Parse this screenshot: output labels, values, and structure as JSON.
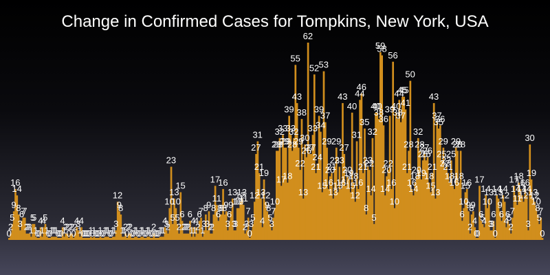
{
  "chart_data": {
    "type": "bar",
    "title": "Change in Confirmed Cases for Tompkins, New York, USA",
    "xlabel": "",
    "ylabel": "",
    "grid": false,
    "legend": "none",
    "bar_color": "#d18e1d",
    "label_color": "#ffffff",
    "ylim": [
      -4,
      62
    ],
    "values": [
      0,
      2,
      5,
      9,
      16,
      14,
      8,
      3,
      6,
      7,
      7,
      2,
      2,
      2,
      1,
      5,
      5,
      1,
      0,
      0,
      4,
      1,
      4,
      5,
      1,
      0,
      0,
      1,
      1,
      1,
      1,
      0,
      0,
      0,
      4,
      1,
      2,
      2,
      0,
      2,
      2,
      0,
      2,
      4,
      3,
      1,
      4,
      0,
      0,
      0,
      0,
      0,
      1,
      0,
      1,
      0,
      0,
      0,
      1,
      0,
      0,
      1,
      1,
      1,
      0,
      0,
      1,
      1,
      3,
      12,
      9,
      8,
      1,
      1,
      2,
      0,
      2,
      2,
      0,
      0,
      1,
      1,
      0,
      0,
      1,
      1,
      0,
      0,
      1,
      1,
      0,
      0,
      2,
      0,
      0,
      0,
      1,
      1,
      1,
      4,
      3,
      2,
      10,
      23,
      5,
      13,
      10,
      5,
      2,
      15,
      6,
      2,
      2,
      2,
      2,
      6,
      1,
      4,
      1,
      4,
      2,
      6,
      7,
      1,
      3,
      8,
      3,
      9,
      2,
      2,
      8,
      17,
      11,
      6,
      8,
      8,
      16,
      8,
      9,
      3,
      6,
      9,
      13,
      3,
      3,
      10,
      10,
      12,
      13,
      11,
      2,
      3,
      7,
      0,
      3,
      5,
      12,
      27,
      31,
      21,
      13,
      4,
      19,
      12,
      9,
      8,
      5,
      3,
      7,
      10,
      28,
      28,
      32,
      17,
      33,
      29,
      29,
      18,
      39,
      33,
      28,
      32,
      55,
      43,
      29,
      22,
      38,
      13,
      30,
      26,
      62,
      27,
      27,
      33,
      52,
      21,
      24,
      39,
      34,
      15,
      53,
      37,
      29,
      16,
      20,
      21,
      13,
      23,
      29,
      15,
      23,
      16,
      43,
      27,
      17,
      20,
      19,
      15,
      40,
      18,
      12,
      31,
      16,
      44,
      46,
      21,
      35,
      8,
      23,
      22,
      14,
      32,
      5,
      40,
      40,
      38,
      59,
      58,
      36,
      14,
      20,
      22,
      39,
      16,
      56,
      10,
      40,
      38,
      44,
      37,
      45,
      45,
      41,
      21,
      28,
      50,
      16,
      14,
      18,
      20,
      32,
      28,
      19,
      25,
      27,
      25,
      26,
      18,
      15,
      21,
      43,
      13,
      37,
      35,
      36,
      25,
      29,
      22,
      23,
      21,
      18,
      25,
      17,
      16,
      29,
      28,
      18,
      28,
      6,
      10,
      15,
      16,
      9,
      2,
      8,
      9,
      4,
      0,
      0,
      17,
      6,
      5,
      4,
      14,
      10,
      13,
      3,
      3,
      6,
      0,
      14,
      13,
      9,
      6,
      14,
      12,
      4,
      6,
      5,
      2,
      7,
      17,
      14,
      11,
      18,
      16,
      14,
      12,
      16,
      14,
      3,
      30,
      19,
      13,
      12,
      10,
      8,
      5,
      7,
      0
    ]
  }
}
